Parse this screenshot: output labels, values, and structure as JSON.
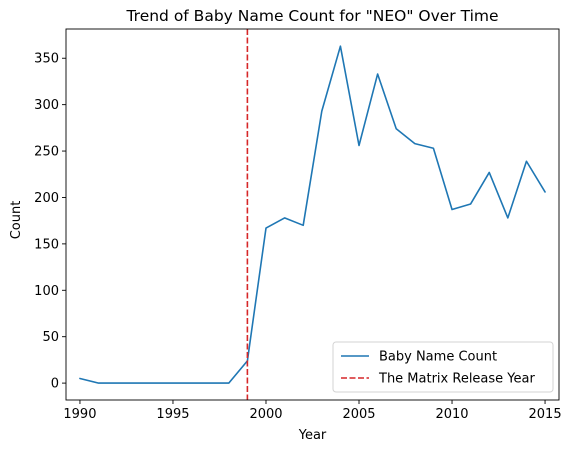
{
  "chart_data": {
    "type": "line",
    "title": "Trend of Baby Name Count for \"NEO\" Over Time",
    "xlabel": "Year",
    "ylabel": "Count",
    "xlim": [
      1989.25,
      2015.75
    ],
    "ylim": [
      -18.2,
      381.5
    ],
    "x_ticks": [
      1990,
      1995,
      2000,
      2005,
      2010,
      2015
    ],
    "y_ticks": [
      0,
      50,
      100,
      150,
      200,
      250,
      300,
      350
    ],
    "grid": false,
    "legend_position": "lower-right",
    "series": [
      {
        "name": "Baby Name Count",
        "color": "#1f77b4",
        "x": [
          1990,
          1991,
          1992,
          1993,
          1994,
          1995,
          1996,
          1997,
          1998,
          1999,
          2000,
          2001,
          2002,
          2003,
          2004,
          2005,
          2006,
          2007,
          2008,
          2009,
          2010,
          2011,
          2012,
          2013,
          2014,
          2015
        ],
        "values": [
          5,
          0,
          0,
          0,
          0,
          0,
          0,
          0,
          0,
          24,
          167,
          178,
          170,
          293,
          363,
          256,
          333,
          274,
          258,
          253,
          187,
          193,
          227,
          178,
          239,
          206
        ]
      }
    ],
    "annotations": [
      {
        "type": "vline",
        "x": 1999,
        "label": "The Matrix Release Year",
        "color": "#d62728",
        "linestyle": "dashed"
      }
    ]
  }
}
